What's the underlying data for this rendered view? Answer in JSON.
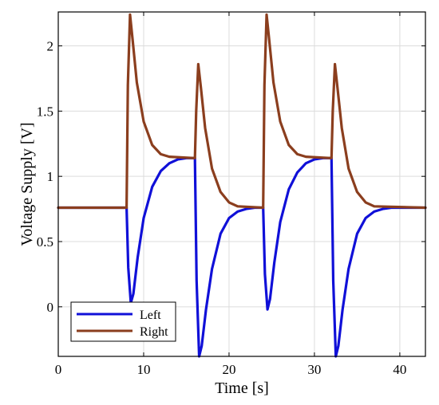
{
  "chart_data": {
    "type": "line",
    "title": "",
    "xlabel": "Time [s]",
    "ylabel": "Voltage Supply [V]",
    "xlim": [
      0,
      43
    ],
    "ylim": [
      -0.38,
      2.26
    ],
    "xticks": [
      0,
      10,
      20,
      30,
      40
    ],
    "yticks": [
      0,
      0.5,
      1,
      1.5,
      2
    ],
    "xtick_labels": [
      "0",
      "10",
      "20",
      "30",
      "40"
    ],
    "ytick_labels": [
      "0",
      "0.5",
      "1",
      "1.5",
      "2"
    ],
    "grid": true,
    "legend_position": "bottom-left",
    "series": [
      {
        "name": "Left",
        "color": "#1010d8",
        "points": [
          [
            0,
            0.76
          ],
          [
            8.0,
            0.76
          ],
          [
            8.2,
            0.3
          ],
          [
            8.5,
            0.03
          ],
          [
            8.8,
            0.1
          ],
          [
            9.3,
            0.38
          ],
          [
            10.0,
            0.68
          ],
          [
            11.0,
            0.92
          ],
          [
            12.0,
            1.04
          ],
          [
            13.0,
            1.1
          ],
          [
            14.0,
            1.13
          ],
          [
            15.0,
            1.14
          ],
          [
            16.0,
            1.14
          ],
          [
            16.2,
            0.2
          ],
          [
            16.5,
            -0.38
          ],
          [
            16.8,
            -0.3
          ],
          [
            17.3,
            -0.02
          ],
          [
            18.0,
            0.29
          ],
          [
            19.0,
            0.56
          ],
          [
            20.0,
            0.68
          ],
          [
            21.0,
            0.73
          ],
          [
            22.0,
            0.75
          ],
          [
            23.0,
            0.76
          ],
          [
            24.0,
            0.76
          ],
          [
            24.2,
            0.25
          ],
          [
            24.5,
            -0.02
          ],
          [
            24.8,
            0.06
          ],
          [
            25.3,
            0.34
          ],
          [
            26.0,
            0.65
          ],
          [
            27.0,
            0.9
          ],
          [
            28.0,
            1.03
          ],
          [
            29.0,
            1.1
          ],
          [
            30.0,
            1.13
          ],
          [
            31.0,
            1.14
          ],
          [
            32.0,
            1.14
          ],
          [
            32.2,
            0.2
          ],
          [
            32.5,
            -0.38
          ],
          [
            32.8,
            -0.3
          ],
          [
            33.3,
            -0.02
          ],
          [
            34.0,
            0.29
          ],
          [
            35.0,
            0.56
          ],
          [
            36.0,
            0.68
          ],
          [
            37.0,
            0.73
          ],
          [
            38.0,
            0.75
          ],
          [
            39.0,
            0.76
          ],
          [
            43,
            0.76
          ]
        ]
      },
      {
        "name": "Right",
        "color": "#8b3e1e",
        "points": [
          [
            0,
            0.76
          ],
          [
            8.0,
            0.76
          ],
          [
            8.15,
            1.7
          ],
          [
            8.4,
            2.24
          ],
          [
            8.7,
            2.05
          ],
          [
            9.2,
            1.72
          ],
          [
            10.0,
            1.42
          ],
          [
            11.0,
            1.24
          ],
          [
            12.0,
            1.17
          ],
          [
            13.0,
            1.15
          ],
          [
            16.0,
            1.14
          ],
          [
            16.15,
            1.5
          ],
          [
            16.4,
            1.86
          ],
          [
            16.7,
            1.68
          ],
          [
            17.2,
            1.37
          ],
          [
            18.0,
            1.06
          ],
          [
            19.0,
            0.88
          ],
          [
            20.0,
            0.8
          ],
          [
            21.0,
            0.77
          ],
          [
            24.0,
            0.76
          ],
          [
            24.15,
            1.7
          ],
          [
            24.4,
            2.24
          ],
          [
            24.7,
            2.05
          ],
          [
            25.2,
            1.72
          ],
          [
            26.0,
            1.42
          ],
          [
            27.0,
            1.24
          ],
          [
            28.0,
            1.17
          ],
          [
            29.0,
            1.15
          ],
          [
            32.0,
            1.14
          ],
          [
            32.15,
            1.5
          ],
          [
            32.4,
            1.86
          ],
          [
            32.7,
            1.68
          ],
          [
            33.2,
            1.37
          ],
          [
            34.0,
            1.06
          ],
          [
            35.0,
            0.88
          ],
          [
            36.0,
            0.8
          ],
          [
            37.0,
            0.77
          ],
          [
            43,
            0.76
          ]
        ]
      }
    ]
  }
}
